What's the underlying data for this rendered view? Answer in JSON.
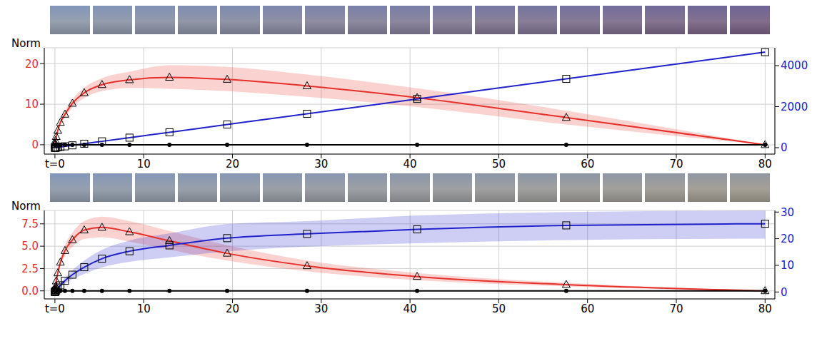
{
  "chart_data": [
    {
      "type": "line",
      "ylabel": "Norm",
      "grid": true,
      "x": [
        0.002,
        0.008,
        0.025,
        0.07,
        0.15,
        0.32,
        0.62,
        1.13,
        1.97,
        3.3,
        5.3,
        8.4,
        12.9,
        19.4,
        28.4,
        40.8,
        57.6,
        80
      ],
      "xlim": [
        -1.2,
        81.1
      ],
      "xticks": [
        {
          "value": 0,
          "label": "t=0"
        },
        10,
        20,
        30,
        40,
        50,
        60,
        70,
        80
      ],
      "ylim": [
        -2.3,
        23.9
      ],
      "yticks": [
        0,
        10,
        20
      ],
      "y2lim": [
        -313,
        4870
      ],
      "y2ticks": [
        0,
        2000,
        4000
      ],
      "series": [
        {
          "color": "#e8302a",
          "marker": "triangle",
          "values": [
            0.0,
            0.1,
            0.4,
            1.0,
            2.0,
            3.5,
            5.5,
            7.5,
            10.2,
            12.8,
            14.8,
            16.0,
            16.6,
            16.1,
            14.5,
            11.6,
            6.7,
            0.0
          ],
          "lower": [
            0.0,
            0.1,
            0.3,
            0.8,
            1.7,
            3.1,
            4.9,
            6.7,
            9.2,
            11.5,
            13.2,
            14.0,
            13.8,
            13.2,
            11.8,
            9.3,
            5.0,
            0.0
          ],
          "upper": [
            0.0,
            0.1,
            0.5,
            1.2,
            2.3,
            3.9,
            6.1,
            8.3,
            11.2,
            14.1,
            16.4,
            18.0,
            19.6,
            19.2,
            17.3,
            13.9,
            8.4,
            0.0
          ]
        },
        {
          "color": "#2222cc",
          "marker": "square",
          "axis": "y2",
          "values": [
            0.1,
            0.5,
            1.5,
            4,
            9,
            19,
            36,
            66,
            115,
            192,
            309,
            489,
            751,
            1130,
            1654,
            2377,
            3355,
            4660
          ]
        },
        {
          "color": "#000000",
          "marker": "circle",
          "values": [
            0,
            0,
            0,
            0,
            0,
            0,
            0,
            0,
            0,
            0,
            0,
            0,
            0,
            0,
            0,
            0,
            0,
            0
          ]
        }
      ]
    },
    {
      "type": "line",
      "ylabel": "Norm",
      "grid": true,
      "x": [
        0.002,
        0.008,
        0.025,
        0.07,
        0.15,
        0.32,
        0.62,
        1.13,
        1.97,
        3.3,
        5.3,
        8.4,
        12.9,
        19.4,
        28.4,
        40.8,
        57.6,
        80
      ],
      "xlim": [
        -1.2,
        81.1
      ],
      "xticks": [
        {
          "value": 0,
          "label": "t=0"
        },
        10,
        20,
        30,
        40,
        50,
        60,
        70,
        80
      ],
      "ylim": [
        -0.9,
        9.0
      ],
      "yticks": [
        {
          "value": 0,
          "label": "0.0"
        },
        2.5,
        {
          "value": 5,
          "label": "5.0"
        },
        7.5
      ],
      "y2lim": [
        -2.6,
        30.6
      ],
      "y2ticks": [
        0,
        10,
        20,
        30
      ],
      "series": [
        {
          "color": "#e8302a",
          "marker": "triangle",
          "values": [
            0.0,
            0.05,
            0.2,
            0.5,
            1.1,
            2.0,
            3.2,
            4.5,
            5.7,
            6.8,
            7.1,
            6.6,
            5.6,
            4.2,
            2.8,
            1.6,
            0.7,
            0.0
          ],
          "lower": [
            0.0,
            0.05,
            0.15,
            0.4,
            0.9,
            1.7,
            2.8,
            3.9,
            4.9,
            5.8,
            6.0,
            5.5,
            4.6,
            3.4,
            2.2,
            1.2,
            0.5,
            0.0
          ],
          "upper": [
            0.0,
            0.05,
            0.25,
            0.6,
            1.3,
            2.3,
            3.6,
            5.1,
            6.5,
            7.8,
            8.3,
            7.8,
            6.7,
            5.1,
            3.4,
            2.0,
            0.9,
            0.0
          ]
        },
        {
          "color": "#2222cc",
          "marker": "square",
          "axis": "y2",
          "values": [
            0.0,
            0.03,
            0.1,
            0.3,
            0.6,
            1.3,
            2.5,
            4.2,
            6.5,
            9.3,
            12.5,
            15.3,
            17.5,
            20.2,
            21.8,
            23.5,
            25.0,
            25.6
          ],
          "lower": [
            0.0,
            0.02,
            0.08,
            0.2,
            0.4,
            0.9,
            1.8,
            3.1,
            4.8,
            6.8,
            9.2,
            11.3,
            13.0,
            15.2,
            17.0,
            18.3,
            19.5,
            20.0
          ],
          "upper": [
            0.0,
            0.04,
            0.12,
            0.4,
            0.8,
            1.7,
            3.2,
            5.3,
            8.2,
            11.8,
            15.8,
            19.3,
            22.0,
            25.5,
            26.6,
            28.7,
            30.0,
            30.5
          ]
        },
        {
          "color": "#000000",
          "marker": "circle",
          "values": [
            0,
            0,
            0,
            0,
            0,
            0,
            0,
            0,
            0,
            0,
            0,
            0,
            0,
            0,
            0,
            0,
            0,
            0
          ]
        }
      ]
    }
  ]
}
